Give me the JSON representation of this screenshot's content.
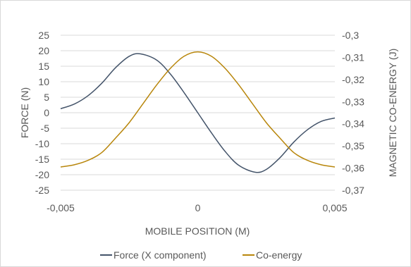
{
  "chart_data": {
    "type": "line",
    "xlabel": "MOBILE POSITION (M)",
    "ylabel": "FORCE (N)",
    "y2label": "MAGNETIC CO-ENERGY (J)",
    "xlim": [
      -0.005,
      0.005
    ],
    "ylim": [
      -25,
      25
    ],
    "y2lim": [
      -0.37,
      -0.3
    ],
    "x_ticks": [
      "-0,005",
      "0",
      "0,005"
    ],
    "y_ticks": [
      "25",
      "20",
      "15",
      "10",
      "5",
      "0",
      "-5",
      "-10",
      "-15",
      "-20",
      "-25"
    ],
    "y2_ticks": [
      "-0,3",
      "-0,31",
      "-0,32",
      "-0,33",
      "-0,34",
      "-0,35",
      "-0,36",
      "-0,37"
    ],
    "grid": "horizontal",
    "legend_position": "bottom",
    "series": [
      {
        "name": "Force (X component)",
        "axis": "left",
        "color": "#44546a",
        "x": [
          -0.005,
          -0.0045,
          -0.004,
          -0.0035,
          -0.003,
          -0.0025,
          -0.0021,
          -0.0015,
          -0.001,
          -0.0005,
          0,
          0.0005,
          0.001,
          0.0015,
          0.0021,
          0.0025,
          0.003,
          0.0035,
          0.004,
          0.0045,
          0.005
        ],
        "y": [
          1.3,
          2.8,
          5.5,
          9.5,
          14.5,
          18.2,
          19.0,
          17.0,
          12.5,
          6.5,
          0,
          -6.5,
          -12.5,
          -17.0,
          -19.2,
          -18.3,
          -14.5,
          -9.5,
          -5.5,
          -2.8,
          -1.7
        ]
      },
      {
        "name": "Co-energy",
        "axis": "right",
        "color": "#b8860b",
        "x": [
          -0.005,
          -0.0045,
          -0.004,
          -0.0035,
          -0.003,
          -0.0025,
          -0.002,
          -0.0015,
          -0.001,
          -0.0005,
          0,
          0.0005,
          0.001,
          0.0015,
          0.002,
          0.0025,
          0.003,
          0.0035,
          0.004,
          0.0045,
          0.005
        ],
        "y": [
          -0.3595,
          -0.3585,
          -0.3565,
          -0.353,
          -0.3465,
          -0.3395,
          -0.331,
          -0.3225,
          -0.315,
          -0.3095,
          -0.3075,
          -0.3095,
          -0.315,
          -0.3225,
          -0.331,
          -0.3395,
          -0.3465,
          -0.353,
          -0.3565,
          -0.3585,
          -0.3595
        ]
      }
    ]
  }
}
